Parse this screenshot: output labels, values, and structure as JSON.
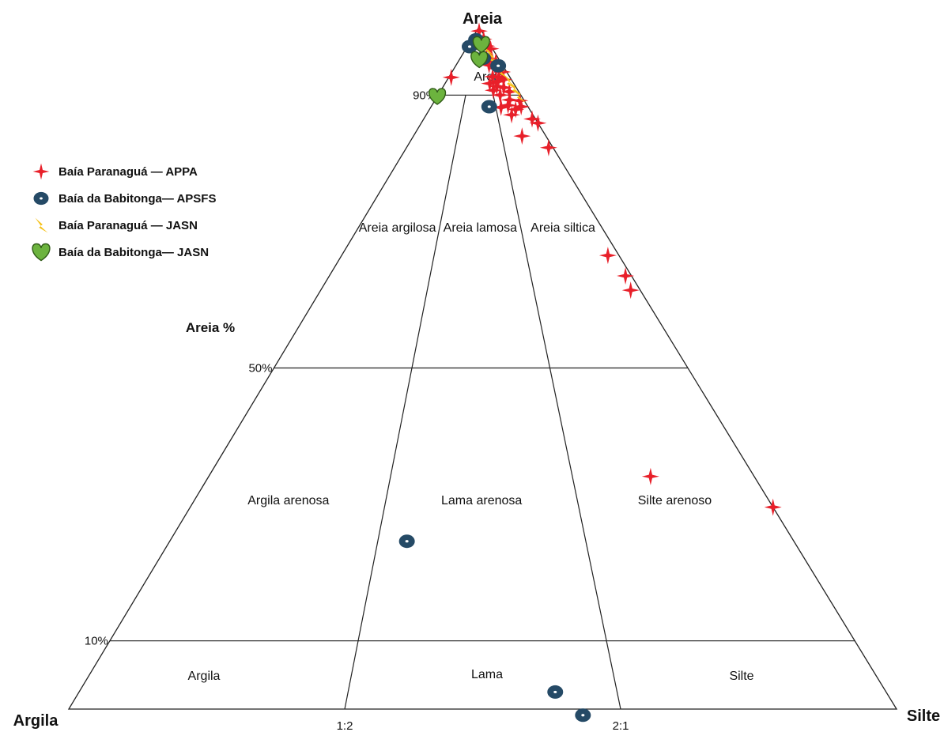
{
  "chart_data": {
    "type": "scatter",
    "subtype": "ternary",
    "vertices": {
      "top": "Areia",
      "left": "Argila",
      "right": "Silte"
    },
    "axis_label": "Areia %",
    "sand_ticks": [
      "90%",
      "50%",
      "10%"
    ],
    "ratio_ticks": [
      "1:2",
      "2:1"
    ],
    "regions": [
      {
        "name": "Areia",
        "id": "areia"
      },
      {
        "name": "Areia argilosa",
        "id": "areia-argilosa"
      },
      {
        "name": "Areia lamosa",
        "id": "areia-lamosa"
      },
      {
        "name": "Areia siltica",
        "id": "areia-siltica"
      },
      {
        "name": "Argila arenosa",
        "id": "argila-arenosa"
      },
      {
        "name": "Lama arenosa",
        "id": "lama-arenosa"
      },
      {
        "name": "Silte arenoso",
        "id": "silte-arenoso"
      },
      {
        "name": "Argila",
        "id": "argila"
      },
      {
        "name": "Lama",
        "id": "lama"
      },
      {
        "name": "Silte",
        "id": "silte"
      }
    ],
    "legend_position": "left",
    "series": [
      {
        "name": "Baía Paranaguá — APPA",
        "marker": "star4",
        "color": "#e8202a",
        "points": [
          {
            "sand": 99.4,
            "silt_frac": 0.5
          },
          {
            "sand": 98.2,
            "silt_frac": 0.8
          },
          {
            "sand": 97.2,
            "silt_frac": 0.82
          },
          {
            "sand": 96.8,
            "silt_frac": 0.93
          },
          {
            "sand": 95.2,
            "silt_frac": 0.82
          },
          {
            "sand": 94.9,
            "silt_frac": 0.89
          },
          {
            "sand": 94.4,
            "silt_frac": 0.71
          },
          {
            "sand": 93.9,
            "silt_frac": 0.83
          },
          {
            "sand": 93.4,
            "silt_frac": 0.92
          },
          {
            "sand": 92.7,
            "silt_frac": 0.72
          },
          {
            "sand": 92.6,
            "silt_frac": 0.82
          },
          {
            "sand": 92.6,
            "silt_frac": 0.04
          },
          {
            "sand": 92.3,
            "silt_frac": 0.88
          },
          {
            "sand": 92.0,
            "silt_frac": 0.77
          },
          {
            "sand": 91.7,
            "silt_frac": 0.65
          },
          {
            "sand": 91.3,
            "silt_frac": 0.74
          },
          {
            "sand": 91.1,
            "silt_frac": 0.83
          },
          {
            "sand": 90.7,
            "silt_frac": 0.68
          },
          {
            "sand": 90.5,
            "silt_frac": 0.88
          },
          {
            "sand": 90.0,
            "silt_frac": 0.75
          },
          {
            "sand": 89.3,
            "silt_frac": 0.84
          },
          {
            "sand": 89.2,
            "silt_frac": 0.95
          },
          {
            "sand": 88.5,
            "silt_frac": 0.8
          },
          {
            "sand": 88.3,
            "silt_frac": 0.93
          },
          {
            "sand": 88.2,
            "silt_frac": 0.72
          },
          {
            "sand": 87.9,
            "silt_frac": 0.86
          },
          {
            "sand": 87.1,
            "silt_frac": 0.8
          },
          {
            "sand": 86.5,
            "silt_frac": 0.97
          },
          {
            "sand": 85.9,
            "silt_frac": 1.0
          },
          {
            "sand": 84.0,
            "silt_frac": 0.82
          },
          {
            "sand": 82.3,
            "silt_frac": 0.97
          },
          {
            "sand": 66.5,
            "silt_frac": 0.96
          },
          {
            "sand": 63.5,
            "silt_frac": 0.98
          },
          {
            "sand": 61.4,
            "silt_frac": 0.97
          },
          {
            "sand": 34.1,
            "silt_frac": 0.81
          },
          {
            "sand": 29.6,
            "silt_frac": 1.0
          }
        ]
      },
      {
        "name": "Baía da Babitonga— APSFS",
        "marker": "oval",
        "color": "#254a66",
        "points": [
          {
            "sand": 98.1,
            "silt_frac": 0.3
          },
          {
            "sand": 97.1,
            "silt_frac": 0.1
          },
          {
            "sand": 95.4,
            "silt_frac": 0.6
          },
          {
            "sand": 94.3,
            "silt_frac": 0.9
          },
          {
            "sand": 88.3,
            "silt_frac": 0.6
          },
          {
            "sand": 24.6,
            "silt_frac": 0.38
          },
          {
            "sand": 2.5,
            "silt_frac": 0.59
          },
          {
            "sand": -0.9,
            "silt_frac": 0.62
          }
        ]
      },
      {
        "name": "Baía Paranaguá — JASN",
        "marker": "bolt",
        "color": "#f6c21a",
        "points": [
          {
            "sand": 97.0,
            "silt_frac": 0.8
          },
          {
            "sand": 95.5,
            "silt_frac": 0.85
          },
          {
            "sand": 94.5,
            "silt_frac": 0.9
          },
          {
            "sand": 93.5,
            "silt_frac": 0.92
          },
          {
            "sand": 92.0,
            "silt_frac": 0.95
          },
          {
            "sand": 91.0,
            "silt_frac": 0.97
          },
          {
            "sand": 90.0,
            "silt_frac": 0.98
          }
        ]
      },
      {
        "name": "Baía da Babitonga— JASN",
        "marker": "heart",
        "color": "#6cb33e",
        "points": [
          {
            "sand": 97.4,
            "silt_frac": 0.6
          },
          {
            "sand": 95.2,
            "silt_frac": 0.5
          },
          {
            "sand": 89.8,
            "silt_frac": 0.0
          }
        ]
      }
    ]
  },
  "legend": {
    "items": [
      {
        "label": "Baía Paranaguá — APPA",
        "marker": "star4",
        "color": "#e8202a",
        "icon": "red-star-icon"
      },
      {
        "label": "Baía da Babitonga— APSFS",
        "marker": "oval",
        "color": "#254a66",
        "icon": "blue-oval-icon"
      },
      {
        "label": "Baía Paranaguá — JASN",
        "marker": "bolt",
        "color": "#f6c21a",
        "icon": "yellow-bolt-icon"
      },
      {
        "label": "Baía da Babitonga— JASN",
        "marker": "heart",
        "color": "#6cb33e",
        "icon": "green-heart-icon"
      }
    ]
  }
}
